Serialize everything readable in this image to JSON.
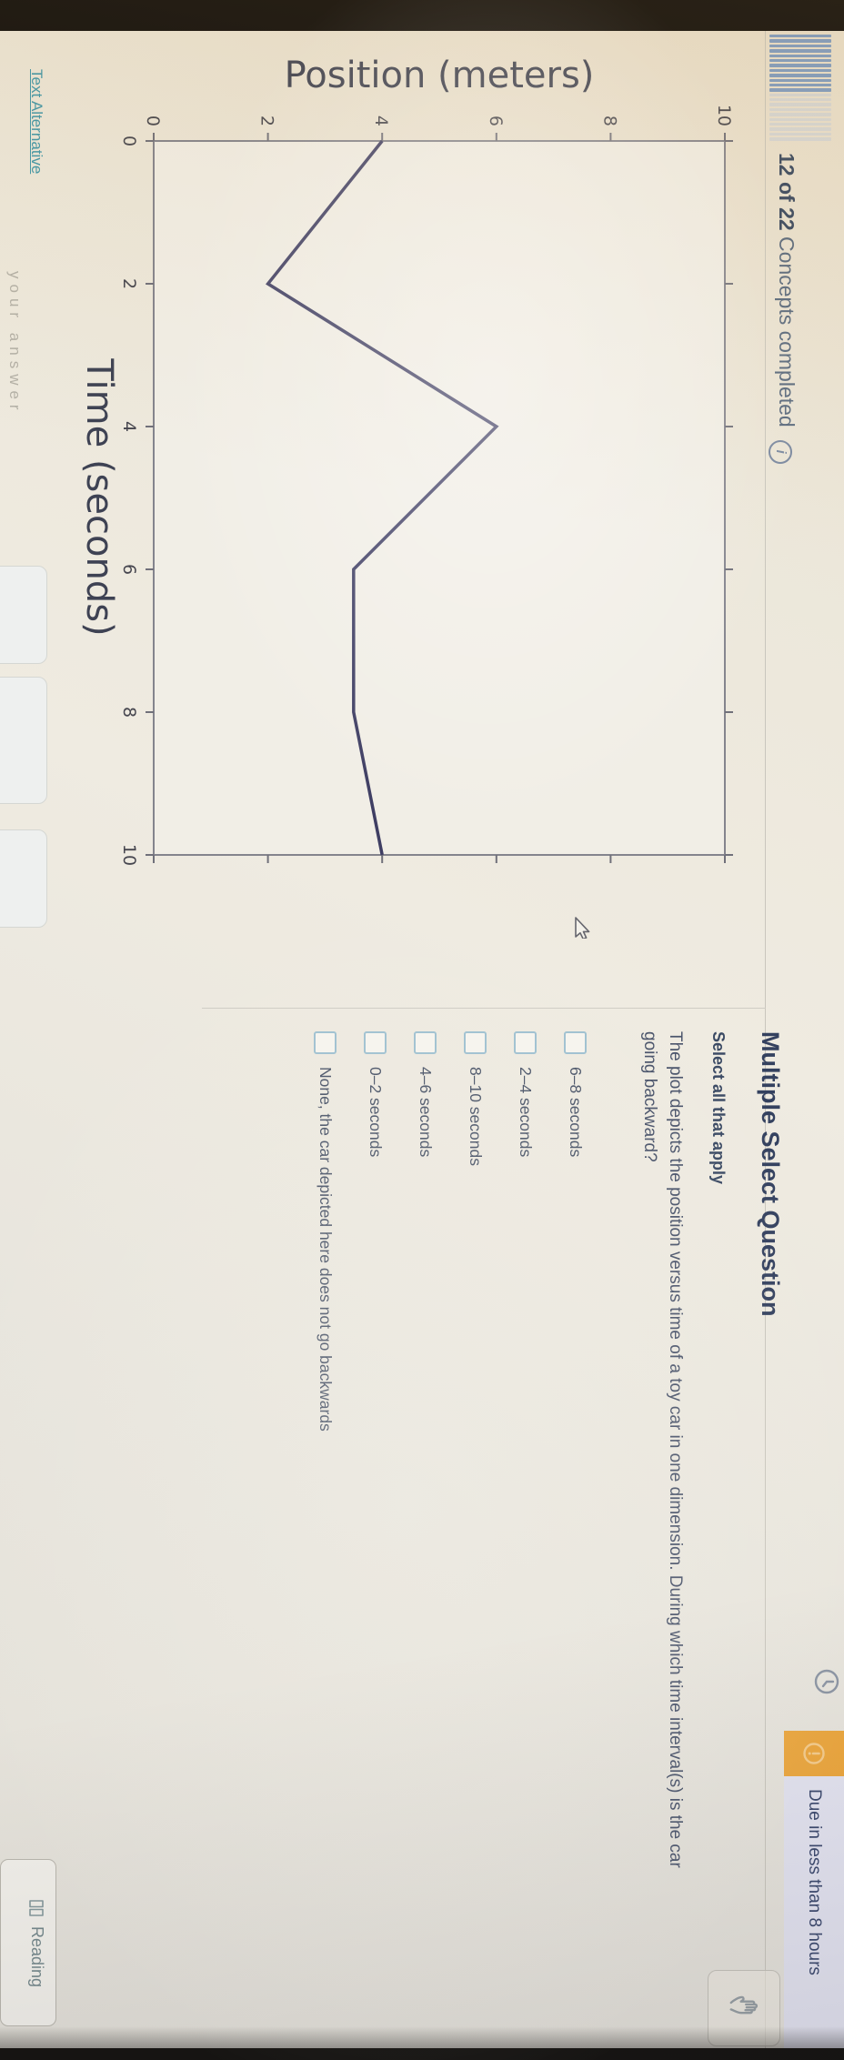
{
  "header": {
    "progress_done": 12,
    "progress_total": 22,
    "progress_bold": "12 of 22",
    "progress_rest": " Concepts completed",
    "info_icon": "i",
    "due_banner": {
      "text": "Due in less than 8 hours",
      "close_glyph": "✕"
    }
  },
  "chart_data": {
    "type": "line",
    "title": "",
    "xlabel": "Time (seconds)",
    "ylabel": "Position (meters)",
    "x": [
      0,
      2,
      4,
      6,
      8,
      10
    ],
    "y": [
      4,
      2,
      6,
      3.5,
      3.5,
      4
    ],
    "xlim": [
      0,
      10
    ],
    "ylim": [
      0,
      10
    ],
    "x_ticks": [
      0,
      2,
      4,
      6,
      8,
      10
    ],
    "y_ticks": [
      0,
      2,
      4,
      6,
      8,
      10
    ],
    "grid": false,
    "legend": null,
    "line_color": "#3f3e63"
  },
  "question": {
    "heading": "Multiple Select Question",
    "instruction": "Select all that apply",
    "prompt": "The plot depicts the position versus time of a toy car in one dimension. During which time interval(s) is the car going backward?",
    "options": [
      {
        "label": "6–8 seconds",
        "checked": false
      },
      {
        "label": "2–4 seconds",
        "checked": false
      },
      {
        "label": "8–10 seconds",
        "checked": false
      },
      {
        "label": "4–6 seconds",
        "checked": false
      },
      {
        "label": "0–2 seconds",
        "checked": false
      },
      {
        "label": "None, the car depicted here does not go backwards",
        "checked": false
      }
    ]
  },
  "footer": {
    "text_alternative": "Text Alternative",
    "partial_text": "your answer",
    "reading_label": "Reading"
  },
  "colors": {
    "accent_teal": "#3f96a8",
    "banner_orange": "#eda83f",
    "banner_bg": "#e4e4f0",
    "line": "#3f3e63",
    "heading": "#34415f",
    "progress_bar": "#7e9cc3",
    "checkbox_border": "#9ec0d0"
  }
}
